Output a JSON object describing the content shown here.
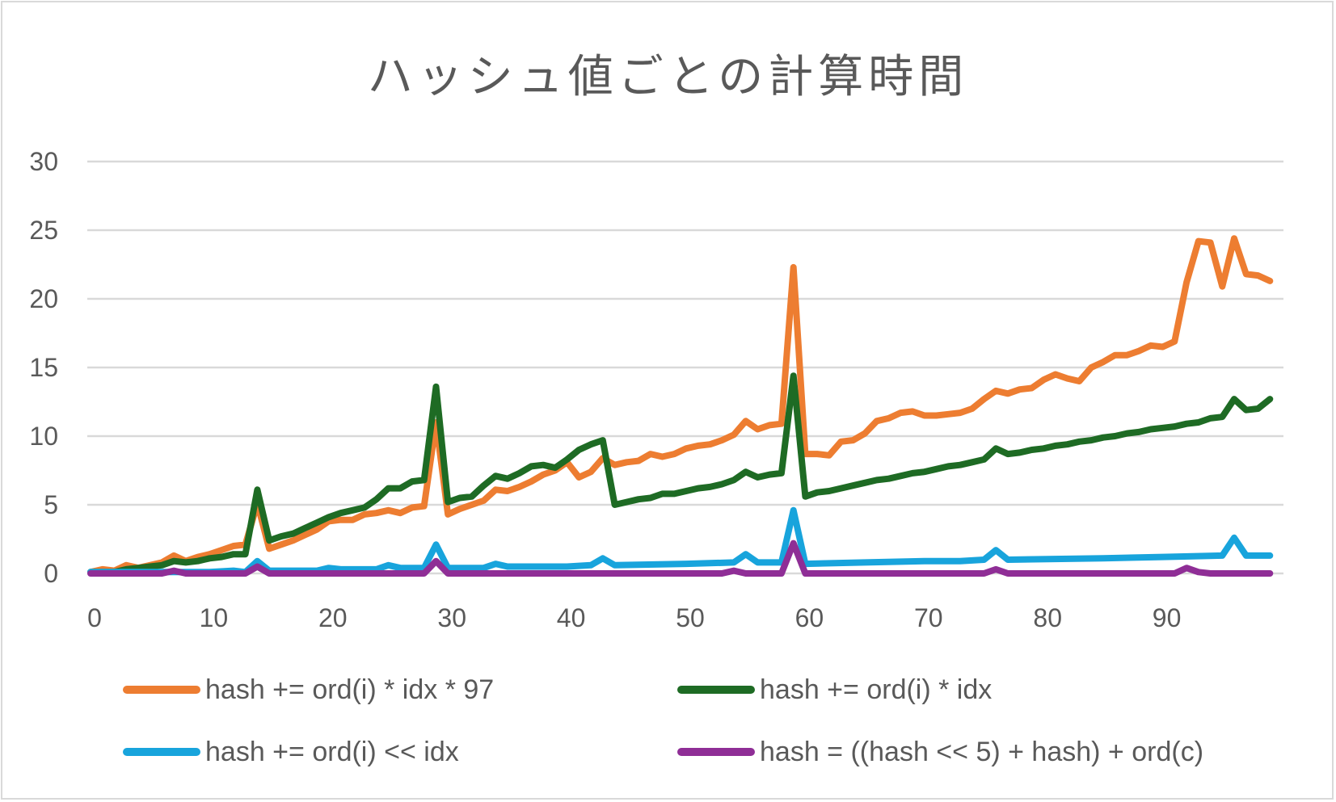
{
  "chart_data": {
    "type": "line",
    "title": "ハッシュ値ごとの計算時間",
    "xlabel": "",
    "ylabel": "",
    "xlim": [
      0,
      100
    ],
    "ylim": [
      0,
      30
    ],
    "x_ticks": [
      0,
      10,
      20,
      30,
      40,
      50,
      60,
      70,
      80,
      90
    ],
    "y_ticks": [
      0,
      5,
      10,
      15,
      20,
      25,
      30
    ],
    "grid": "horizontal",
    "legend_position": "bottom",
    "series": [
      {
        "name": "hash += ord(i) * idx * 97",
        "color": "#ed7d31",
        "points": [
          [
            0,
            0.1
          ],
          [
            1,
            0.3
          ],
          [
            2,
            0.2
          ],
          [
            3,
            0.6
          ],
          [
            4,
            0.4
          ],
          [
            5,
            0.6
          ],
          [
            6,
            0.8
          ],
          [
            7,
            1.3
          ],
          [
            8,
            0.9
          ],
          [
            9,
            1.2
          ],
          [
            10,
            1.4
          ],
          [
            11,
            1.7
          ],
          [
            12,
            2.0
          ],
          [
            13,
            2.1
          ],
          [
            14,
            5.1
          ],
          [
            15,
            1.8
          ],
          [
            16,
            2.1
          ],
          [
            17,
            2.4
          ],
          [
            18,
            2.8
          ],
          [
            19,
            3.2
          ],
          [
            20,
            3.8
          ],
          [
            21,
            3.9
          ],
          [
            22,
            3.9
          ],
          [
            23,
            4.3
          ],
          [
            24,
            4.4
          ],
          [
            25,
            4.6
          ],
          [
            26,
            4.4
          ],
          [
            27,
            4.8
          ],
          [
            28,
            4.9
          ],
          [
            29,
            11.0
          ],
          [
            30,
            4.3
          ],
          [
            31,
            4.7
          ],
          [
            32,
            5.0
          ],
          [
            33,
            5.3
          ],
          [
            34,
            6.1
          ],
          [
            35,
            6.0
          ],
          [
            36,
            6.3
          ],
          [
            37,
            6.7
          ],
          [
            38,
            7.2
          ],
          [
            39,
            7.5
          ],
          [
            40,
            8.1
          ],
          [
            41,
            7.0
          ],
          [
            42,
            7.4
          ],
          [
            43,
            8.4
          ],
          [
            44,
            7.9
          ],
          [
            45,
            8.1
          ],
          [
            46,
            8.2
          ],
          [
            47,
            8.7
          ],
          [
            48,
            8.5
          ],
          [
            49,
            8.7
          ],
          [
            50,
            9.1
          ],
          [
            51,
            9.3
          ],
          [
            52,
            9.4
          ],
          [
            53,
            9.7
          ],
          [
            54,
            10.1
          ],
          [
            55,
            11.1
          ],
          [
            56,
            10.5
          ],
          [
            57,
            10.8
          ],
          [
            58,
            10.9
          ],
          [
            59,
            22.3
          ],
          [
            60,
            8.7
          ],
          [
            61,
            8.7
          ],
          [
            62,
            8.6
          ],
          [
            63,
            9.6
          ],
          [
            64,
            9.7
          ],
          [
            65,
            10.2
          ],
          [
            66,
            11.1
          ],
          [
            67,
            11.3
          ],
          [
            68,
            11.7
          ],
          [
            69,
            11.8
          ],
          [
            70,
            11.5
          ],
          [
            71,
            11.5
          ],
          [
            72,
            11.6
          ],
          [
            73,
            11.7
          ],
          [
            74,
            12.0
          ],
          [
            75,
            12.7
          ],
          [
            76,
            13.3
          ],
          [
            77,
            13.1
          ],
          [
            78,
            13.4
          ],
          [
            79,
            13.5
          ],
          [
            80,
            14.1
          ],
          [
            81,
            14.5
          ],
          [
            82,
            14.2
          ],
          [
            83,
            14.0
          ],
          [
            84,
            15.0
          ],
          [
            85,
            15.4
          ],
          [
            86,
            15.9
          ],
          [
            87,
            15.9
          ],
          [
            88,
            16.2
          ],
          [
            89,
            16.6
          ],
          [
            90,
            16.5
          ],
          [
            91,
            16.9
          ],
          [
            92,
            21.2
          ],
          [
            93,
            24.2
          ],
          [
            94,
            24.1
          ],
          [
            95,
            20.9
          ],
          [
            96,
            24.4
          ],
          [
            97,
            21.8
          ],
          [
            98,
            21.7
          ],
          [
            99,
            21.3
          ]
        ]
      },
      {
        "name": "hash += ord(i) * idx",
        "color": "#1e6b24",
        "points": [
          [
            0,
            0.1
          ],
          [
            1,
            0.1
          ],
          [
            2,
            0.1
          ],
          [
            3,
            0.3
          ],
          [
            4,
            0.4
          ],
          [
            5,
            0.5
          ],
          [
            6,
            0.6
          ],
          [
            7,
            0.9
          ],
          [
            8,
            0.8
          ],
          [
            9,
            0.9
          ],
          [
            10,
            1.1
          ],
          [
            11,
            1.2
          ],
          [
            12,
            1.4
          ],
          [
            13,
            1.4
          ],
          [
            14,
            6.1
          ],
          [
            15,
            2.4
          ],
          [
            16,
            2.7
          ],
          [
            17,
            2.9
          ],
          [
            18,
            3.3
          ],
          [
            19,
            3.7
          ],
          [
            20,
            4.1
          ],
          [
            21,
            4.4
          ],
          [
            22,
            4.6
          ],
          [
            23,
            4.8
          ],
          [
            24,
            5.4
          ],
          [
            25,
            6.2
          ],
          [
            26,
            6.2
          ],
          [
            27,
            6.7
          ],
          [
            28,
            6.8
          ],
          [
            29,
            13.6
          ],
          [
            30,
            5.2
          ],
          [
            31,
            5.5
          ],
          [
            32,
            5.6
          ],
          [
            33,
            6.4
          ],
          [
            34,
            7.1
          ],
          [
            35,
            6.9
          ],
          [
            36,
            7.3
          ],
          [
            37,
            7.8
          ],
          [
            38,
            7.9
          ],
          [
            39,
            7.7
          ],
          [
            40,
            8.3
          ],
          [
            41,
            9.0
          ],
          [
            42,
            9.4
          ],
          [
            43,
            9.7
          ],
          [
            44,
            5.0
          ],
          [
            45,
            5.2
          ],
          [
            46,
            5.4
          ],
          [
            47,
            5.5
          ],
          [
            48,
            5.8
          ],
          [
            49,
            5.8
          ],
          [
            50,
            6.0
          ],
          [
            51,
            6.2
          ],
          [
            52,
            6.3
          ],
          [
            53,
            6.5
          ],
          [
            54,
            6.8
          ],
          [
            55,
            7.4
          ],
          [
            56,
            7.0
          ],
          [
            57,
            7.2
          ],
          [
            58,
            7.3
          ],
          [
            59,
            14.4
          ],
          [
            60,
            5.6
          ],
          [
            61,
            5.9
          ],
          [
            62,
            6.0
          ],
          [
            63,
            6.2
          ],
          [
            64,
            6.4
          ],
          [
            65,
            6.6
          ],
          [
            66,
            6.8
          ],
          [
            67,
            6.9
          ],
          [
            68,
            7.1
          ],
          [
            69,
            7.3
          ],
          [
            70,
            7.4
          ],
          [
            71,
            7.6
          ],
          [
            72,
            7.8
          ],
          [
            73,
            7.9
          ],
          [
            74,
            8.1
          ],
          [
            75,
            8.3
          ],
          [
            76,
            9.1
          ],
          [
            77,
            8.7
          ],
          [
            78,
            8.8
          ],
          [
            79,
            9.0
          ],
          [
            80,
            9.1
          ],
          [
            81,
            9.3
          ],
          [
            82,
            9.4
          ],
          [
            83,
            9.6
          ],
          [
            84,
            9.7
          ],
          [
            85,
            9.9
          ],
          [
            86,
            10.0
          ],
          [
            87,
            10.2
          ],
          [
            88,
            10.3
          ],
          [
            89,
            10.5
          ],
          [
            90,
            10.6
          ],
          [
            91,
            10.7
          ],
          [
            92,
            10.9
          ],
          [
            93,
            11.0
          ],
          [
            94,
            11.3
          ],
          [
            95,
            11.4
          ],
          [
            96,
            12.7
          ],
          [
            97,
            11.9
          ],
          [
            98,
            12.0
          ],
          [
            99,
            12.7
          ]
        ]
      },
      {
        "name": "hash += ord(i) << idx",
        "color": "#18a4dc",
        "points": [
          [
            0,
            0.1
          ],
          [
            5,
            0.1
          ],
          [
            10,
            0.1
          ],
          [
            12,
            0.2
          ],
          [
            13,
            0.1
          ],
          [
            14,
            0.9
          ],
          [
            15,
            0.2
          ],
          [
            19,
            0.2
          ],
          [
            20,
            0.4
          ],
          [
            21,
            0.3
          ],
          [
            24,
            0.3
          ],
          [
            25,
            0.6
          ],
          [
            26,
            0.4
          ],
          [
            28,
            0.4
          ],
          [
            29,
            2.1
          ],
          [
            30,
            0.4
          ],
          [
            33,
            0.4
          ],
          [
            34,
            0.7
          ],
          [
            35,
            0.5
          ],
          [
            40,
            0.5
          ],
          [
            42,
            0.6
          ],
          [
            43,
            1.1
          ],
          [
            44,
            0.6
          ],
          [
            50,
            0.7
          ],
          [
            54,
            0.8
          ],
          [
            55,
            1.4
          ],
          [
            56,
            0.8
          ],
          [
            58,
            0.8
          ],
          [
            59,
            4.6
          ],
          [
            60,
            0.7
          ],
          [
            65,
            0.8
          ],
          [
            70,
            0.9
          ],
          [
            73,
            0.9
          ],
          [
            75,
            1.0
          ],
          [
            76,
            1.7
          ],
          [
            77,
            1.0
          ],
          [
            85,
            1.1
          ],
          [
            90,
            1.2
          ],
          [
            95,
            1.3
          ],
          [
            96,
            2.6
          ],
          [
            97,
            1.3
          ],
          [
            99,
            1.3
          ]
        ]
      },
      {
        "name": "hash = ((hash << 5) + hash) + ord(c)",
        "color": "#8f2e96",
        "points": [
          [
            0,
            0.0
          ],
          [
            6,
            0.0
          ],
          [
            7,
            0.2
          ],
          [
            8,
            0.0
          ],
          [
            13,
            0.0
          ],
          [
            14,
            0.5
          ],
          [
            15,
            0.0
          ],
          [
            28,
            0.0
          ],
          [
            29,
            0.9
          ],
          [
            30,
            0.0
          ],
          [
            53,
            0.0
          ],
          [
            54,
            0.2
          ],
          [
            55,
            0.0
          ],
          [
            58,
            0.0
          ],
          [
            59,
            2.2
          ],
          [
            60,
            0.0
          ],
          [
            75,
            0.0
          ],
          [
            76,
            0.3
          ],
          [
            77,
            0.0
          ],
          [
            91,
            0.0
          ],
          [
            92,
            0.4
          ],
          [
            93,
            0.1
          ],
          [
            94,
            0.0
          ],
          [
            99,
            0.0
          ]
        ]
      }
    ]
  }
}
